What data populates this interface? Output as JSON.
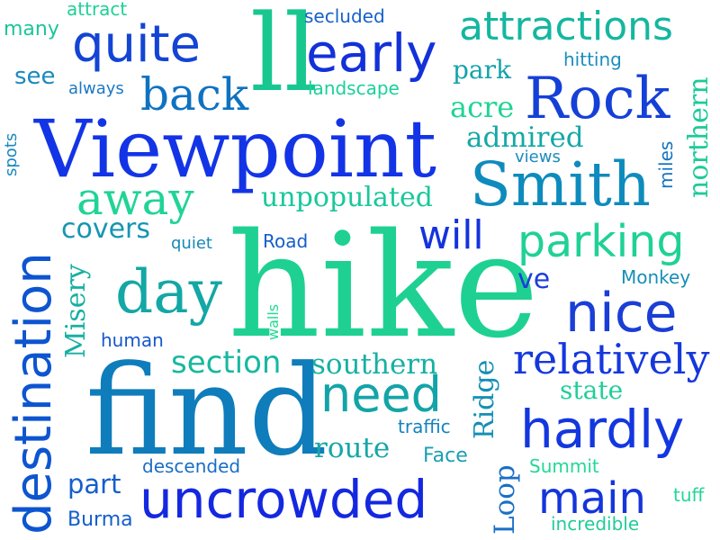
{
  "background": "#ffffff",
  "palette": [
    "#1334e6",
    "#0d63c7",
    "#0a8db8",
    "#12b6a4",
    "#1ed192",
    "#24e584"
  ],
  "words": [
    {
      "text": "hike",
      "color": "#1ed192"
    },
    {
      "text": "find",
      "color": "#0f7dbb"
    },
    {
      "text": "Viewpoint",
      "color": "#1334e6"
    },
    {
      "text": "destination",
      "color": "#0d55d0"
    },
    {
      "text": "uncrowded",
      "color": "#1428e0"
    },
    {
      "text": "Smith",
      "color": "#0e8bbd"
    },
    {
      "text": "Rock",
      "color": "#1540d8"
    },
    {
      "text": "ll",
      "color": "#17c78f"
    },
    {
      "text": "early",
      "color": "#1331d9"
    },
    {
      "text": "quite",
      "color": "#1344d4"
    },
    {
      "text": "attractions",
      "color": "#14b79f"
    },
    {
      "text": "parking",
      "color": "#20d196"
    },
    {
      "text": "nice",
      "color": "#1a3ed6"
    },
    {
      "text": "hardly",
      "color": "#1337df"
    },
    {
      "text": "need",
      "color": "#13a4a8"
    },
    {
      "text": "day",
      "color": "#13a7a5"
    },
    {
      "text": "away",
      "color": "#20d496"
    },
    {
      "text": "back",
      "color": "#0f72c1"
    },
    {
      "text": "main",
      "color": "#1435da"
    },
    {
      "text": "relatively",
      "color": "#1537dd"
    },
    {
      "text": "will",
      "color": "#1433de"
    },
    {
      "text": "section",
      "color": "#18b8a0"
    },
    {
      "text": "southern",
      "color": "#15b1a3"
    },
    {
      "text": "route",
      "color": "#16a7a8"
    },
    {
      "text": "covers",
      "color": "#1695b2"
    },
    {
      "text": "unpopulated",
      "color": "#1bc79c"
    },
    {
      "text": "admired",
      "color": "#15a8a6"
    },
    {
      "text": "Misery",
      "color": "#17b0a3"
    },
    {
      "text": "Ridge",
      "color": "#1390b4"
    },
    {
      "text": "Loop",
      "color": "#1a6fc6"
    },
    {
      "text": "northern",
      "color": "#1ccb98"
    },
    {
      "text": "park",
      "color": "#15a2ab"
    },
    {
      "text": "acre",
      "color": "#1ed594"
    },
    {
      "text": "state",
      "color": "#20cf97"
    },
    {
      "text": "part",
      "color": "#155fcb"
    },
    {
      "text": "Burma",
      "color": "#145fcc"
    },
    {
      "text": "see",
      "color": "#1a89bd"
    },
    {
      "text": "many",
      "color": "#1cc59a"
    },
    {
      "text": "attract",
      "color": "#1fd097"
    },
    {
      "text": "always",
      "color": "#1a78c5"
    },
    {
      "text": "secluded",
      "color": "#1660c8"
    },
    {
      "text": "landscape",
      "color": "#1bd09a"
    },
    {
      "text": "hitting",
      "color": "#1b8dbc"
    },
    {
      "text": "views",
      "color": "#1a8bbd"
    },
    {
      "text": "miles",
      "color": "#1573c2"
    },
    {
      "text": "spots",
      "color": "#1c87bf"
    },
    {
      "text": "quiet",
      "color": "#1688b9"
    },
    {
      "text": "Road",
      "color": "#155fc8"
    },
    {
      "text": "ve",
      "color": "#1c3ed8"
    },
    {
      "text": "Monkey",
      "color": "#168fb6"
    },
    {
      "text": "human",
      "color": "#1757cc"
    },
    {
      "text": "walls",
      "color": "#1fdb93"
    },
    {
      "text": "traffic",
      "color": "#1583bd"
    },
    {
      "text": "Face",
      "color": "#1b9fb2"
    },
    {
      "text": "descended",
      "color": "#1a6ec5"
    },
    {
      "text": "Summit",
      "color": "#22d895"
    },
    {
      "text": "tuff",
      "color": "#21d796"
    },
    {
      "text": "incredible",
      "color": "#21cc99"
    }
  ]
}
